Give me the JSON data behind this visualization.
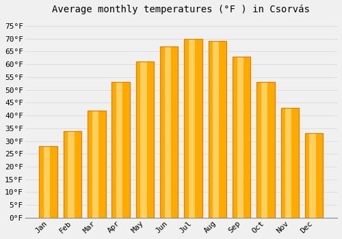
{
  "title": "Average monthly temperatures (°F ) in Csorvás",
  "months": [
    "Jan",
    "Feb",
    "Mar",
    "Apr",
    "May",
    "Jun",
    "Jul",
    "Aug",
    "Sep",
    "Oct",
    "Nov",
    "Dec"
  ],
  "values": [
    28,
    34,
    42,
    53,
    61,
    67,
    70,
    69,
    63,
    53,
    43,
    33
  ],
  "bar_color_face": "#FFAA00",
  "bar_color_light": "#FFD060",
  "bar_edge_color": "#E08000",
  "background_color": "#F0F0F0",
  "plot_bg_color": "#F0F0F0",
  "grid_color": "#DDDDDD",
  "yticks": [
    0,
    5,
    10,
    15,
    20,
    25,
    30,
    35,
    40,
    45,
    50,
    55,
    60,
    65,
    70,
    75
  ],
  "ylim": [
    0,
    78
  ],
  "title_fontsize": 10,
  "tick_fontsize": 8,
  "font_family": "monospace"
}
